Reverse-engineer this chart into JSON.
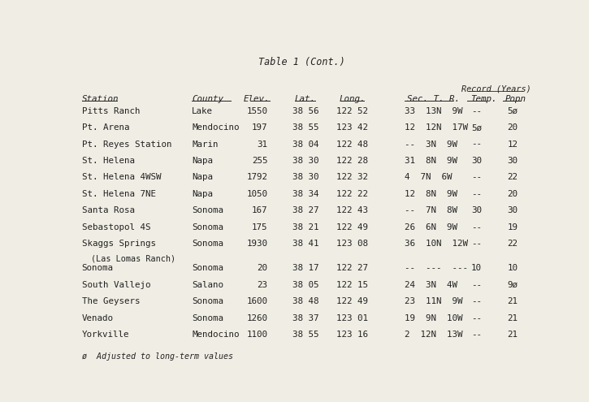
{
  "title": "Table 1 (Cont.)",
  "background_color": "#f0ede4",
  "rows": [
    [
      "Pitts Ranch",
      "Lake",
      "1550",
      "38 56",
      "122 52",
      "33",
      "13N",
      " 9W",
      "--",
      "5ø"
    ],
    [
      "Pt. Arena",
      "Mendocino",
      "197",
      "38 55",
      "123 42",
      "12",
      "12N",
      "17W",
      "5ø",
      "20"
    ],
    [
      "Pt. Reyes Station",
      "Marin",
      "31",
      "38 04",
      "122 48",
      "--",
      " 3N",
      " 9W",
      "--",
      "12"
    ],
    [
      "St. Helena",
      "Napa",
      "255",
      "38 30",
      "122 28",
      "31",
      " 8N",
      " 9W",
      "30",
      "30"
    ],
    [
      "St. Helena 4WSW",
      "Napa",
      "1792",
      "38 30",
      "122 32",
      " 4",
      " 7N",
      " 6W",
      "--",
      "22"
    ],
    [
      "St. Helena 7NE",
      "Napa",
      "1050",
      "38 34",
      "122 22",
      "12",
      " 8N",
      " 9W",
      "--",
      "20"
    ],
    [
      "Santa Rosa",
      "Sonoma",
      "167",
      "38 27",
      "122 43",
      "--",
      " 7N",
      " 8W",
      "30",
      "30"
    ],
    [
      "Sebastopol 4S",
      "Sonoma",
      "175",
      "38 21",
      "122 49",
      "26",
      " 6N",
      " 9W",
      "--",
      "19"
    ],
    [
      "Skaggs Springs",
      "Sonoma",
      "1930",
      "38 41",
      "123 08",
      "36",
      "10N",
      "12W",
      "--",
      "22"
    ],
    [
      "Sonoma",
      "Sonoma",
      "20",
      "38 17",
      "122 27",
      "--",
      "---",
      "---",
      "10",
      "10"
    ],
    [
      "South Vallejo",
      "Salano",
      "23",
      "38 05",
      "122 15",
      "24",
      " 3N",
      " 4W",
      "--",
      "9ø"
    ],
    [
      "The Geysers",
      "Sonoma",
      "1600",
      "38 48",
      "122 49",
      "23",
      "11N",
      " 9W",
      "--",
      "21"
    ],
    [
      "Venado",
      "Sonoma",
      "1260",
      "38 37",
      "123 01",
      "19",
      " 9N",
      "10W",
      "--",
      "21"
    ],
    [
      "Yorkville",
      "Mendocino",
      "1100",
      "38 55",
      "123 16",
      " 2",
      "12N",
      "13W",
      "--",
      "21"
    ]
  ],
  "skaggs_sub": "(Las Lomas Ranch)",
  "footnote": "ø  Adjusted to long-term values",
  "col_labels": [
    "Station",
    "County",
    "Elev.",
    "Lat.",
    "Long.",
    "Sec.",
    "T.",
    "R.",
    "Temp.",
    "Popn"
  ],
  "col_header_display": [
    "Station",
    "County",
    "Elev.",
    "Lat.",
    "Long.",
    "Sec. T. R.",
    "Temp.",
    "Popn"
  ],
  "text_color": "#222222",
  "font_size": 7.8,
  "title_font_size": 8.5,
  "footnote_font_size": 7.2
}
